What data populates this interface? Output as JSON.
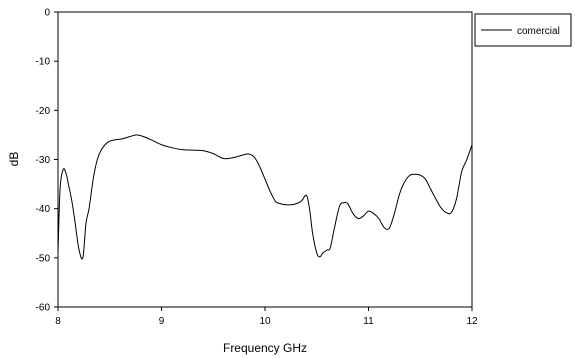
{
  "chart_data": {
    "type": "line",
    "title": "",
    "xlabel": "Frequency GHz",
    "ylabel": "dB",
    "xlim": [
      8,
      12
    ],
    "ylim": [
      -60,
      0
    ],
    "xticks": [
      8,
      9,
      10,
      11,
      12
    ],
    "yticks": [
      0,
      -10,
      -20,
      -30,
      -40,
      -50,
      -60
    ],
    "grid": false,
    "legend_position": "top-right, outside plot",
    "series": [
      {
        "name": "comercial",
        "color": "#000000",
        "x": [
          8.0,
          8.02,
          8.05,
          8.08,
          8.1,
          8.13,
          8.16,
          8.2,
          8.24,
          8.27,
          8.3,
          8.34,
          8.38,
          8.42,
          8.48,
          8.55,
          8.62,
          8.7,
          8.76,
          8.82,
          8.9,
          9.0,
          9.1,
          9.2,
          9.3,
          9.4,
          9.5,
          9.6,
          9.7,
          9.8,
          9.85,
          9.9,
          9.95,
          10.0,
          10.05,
          10.1,
          10.15,
          10.2,
          10.25,
          10.3,
          10.35,
          10.4,
          10.43,
          10.46,
          10.5,
          10.53,
          10.56,
          10.6,
          10.63,
          10.67,
          10.72,
          10.76,
          10.8,
          10.85,
          10.9,
          10.95,
          11.0,
          11.05,
          11.1,
          11.15,
          11.2,
          11.25,
          11.3,
          11.35,
          11.4,
          11.45,
          11.5,
          11.55,
          11.6,
          11.65,
          11.7,
          11.75,
          11.8,
          11.85,
          11.9,
          11.95,
          12.0
        ],
        "y": [
          -49,
          -36,
          -32,
          -33,
          -35,
          -38,
          -42,
          -48,
          -50,
          -43,
          -40,
          -34,
          -30,
          -28,
          -26.5,
          -26,
          -25.8,
          -25.3,
          -25,
          -25.3,
          -26,
          -27,
          -27.6,
          -28,
          -28.1,
          -28.2,
          -28.8,
          -29.8,
          -29.6,
          -29,
          -28.9,
          -29.6,
          -31.5,
          -34,
          -36.5,
          -38.5,
          -39,
          -39.2,
          -39.2,
          -39,
          -38.5,
          -37.3,
          -40,
          -45,
          -49,
          -49.8,
          -49,
          -48.4,
          -48,
          -44,
          -39.5,
          -38.8,
          -39,
          -41,
          -42,
          -41.5,
          -40.5,
          -41,
          -42,
          -43.8,
          -44,
          -41,
          -37,
          -34.5,
          -33.2,
          -33,
          -33.2,
          -34,
          -36,
          -38,
          -39.8,
          -40.8,
          -40.8,
          -38,
          -32.5,
          -30,
          -27
        ]
      }
    ]
  }
}
